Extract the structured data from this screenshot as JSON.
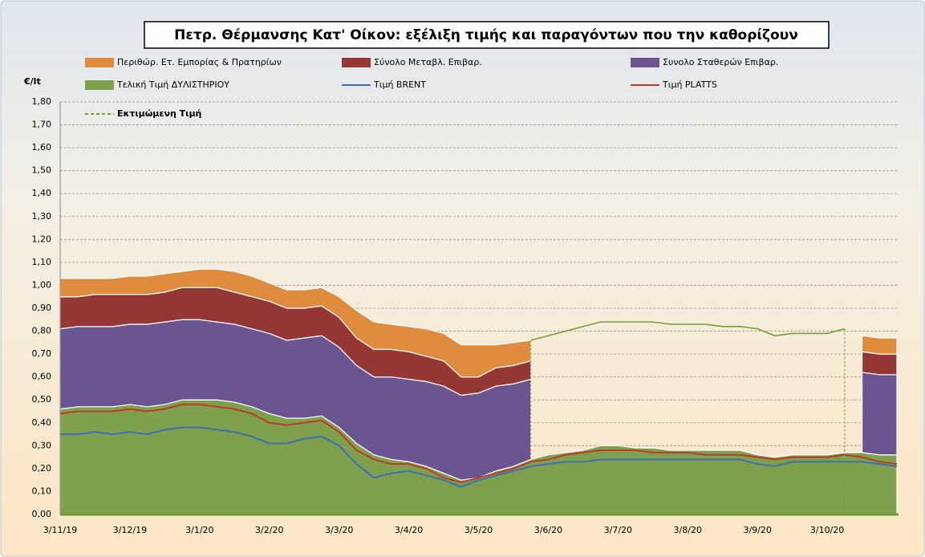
{
  "chart_data": {
    "type": "stacked-area-line",
    "title": "Πετρ. Θέρμανσης Κατ' Οίκον: εξέλιξη τιμής και παραγόντων που την καθορίζουν",
    "y_label": "€/lt",
    "categories": [
      "3/11/19",
      null,
      null,
      null,
      "3/12/19",
      null,
      null,
      null,
      "3/1/20",
      null,
      null,
      null,
      "3/2/20",
      null,
      null,
      null,
      "3/3/20",
      null,
      null,
      null,
      "3/4/20",
      null,
      null,
      null,
      "3/5/20",
      null,
      null,
      null,
      "3/6/20",
      null,
      null,
      null,
      "3/7/20",
      null,
      null,
      null,
      "3/8/20",
      null,
      null,
      null,
      "3/9/20",
      null,
      null,
      null,
      "3/10/20",
      null,
      null,
      null,
      null
    ],
    "ylim": [
      0,
      1.8
    ],
    "yticks": [
      {
        "value": 0,
        "label": "0,00"
      },
      {
        "value": 0.1,
        "label": "0,10"
      },
      {
        "value": 0.2,
        "label": "0,20"
      },
      {
        "value": 0.3,
        "label": "0,30"
      },
      {
        "value": 0.4,
        "label": "0,40"
      },
      {
        "value": 0.5,
        "label": "0,50"
      },
      {
        "value": 0.6,
        "label": "0,60"
      },
      {
        "value": 0.7,
        "label": "0,70"
      },
      {
        "value": 0.8,
        "label": "0,80"
      },
      {
        "value": 0.9,
        "label": "0,90"
      },
      {
        "value": 1.0,
        "label": "1,00"
      },
      {
        "value": 1.1,
        "label": "1,10"
      },
      {
        "value": 1.2,
        "label": "1,20"
      },
      {
        "value": 1.3,
        "label": "1,30"
      },
      {
        "value": 1.4,
        "label": "1,40"
      },
      {
        "value": 1.5,
        "label": "1,50"
      },
      {
        "value": 1.6,
        "label": "1,60"
      },
      {
        "value": 1.7,
        "label": "1,70"
      },
      {
        "value": 1.8,
        "label": "1,80"
      }
    ],
    "grid": true,
    "series": [
      {
        "name": "Τελική Τιμή ΔΥΛΙΣΤΗΡΙΟΥ",
        "kind": "area",
        "color": "#7ea04d",
        "values": [
          0.46,
          0.47,
          0.47,
          0.47,
          0.48,
          0.47,
          0.48,
          0.5,
          0.5,
          0.5,
          0.49,
          0.47,
          0.44,
          0.42,
          0.42,
          0.43,
          0.38,
          0.31,
          0.26,
          0.24,
          0.23,
          0.21,
          0.18,
          0.15,
          0.16,
          0.19,
          0.21,
          0.24,
          0.26,
          0.27,
          0.28,
          0.3,
          0.3,
          0.29,
          0.29,
          0.28,
          0.28,
          0.28,
          0.28,
          0.28,
          0.26,
          0.25,
          0.26,
          0.26,
          0.26,
          0.27,
          0.27,
          0.26,
          0.26
        ]
      },
      {
        "name": "Συνολο Σταθερών Επιβαρ.",
        "kind": "area",
        "color": "#6b548f",
        "values": [
          0.35,
          0.35,
          0.35,
          0.35,
          0.35,
          0.36,
          0.36,
          0.35,
          0.35,
          0.34,
          0.34,
          0.34,
          0.35,
          0.34,
          0.35,
          0.35,
          0.35,
          0.34,
          0.34,
          0.36,
          0.36,
          0.37,
          0.38,
          0.37,
          0.37,
          0.37,
          0.36,
          0.35,
          null,
          null,
          null,
          null,
          null,
          null,
          null,
          null,
          null,
          null,
          null,
          null,
          null,
          null,
          null,
          null,
          null,
          null,
          0.35,
          0.35,
          0.35
        ]
      },
      {
        "name": "Σύνολο Μεταβλ. Επιβαρ.",
        "kind": "area",
        "color": "#953735",
        "values": [
          0.14,
          0.13,
          0.14,
          0.14,
          0.13,
          0.13,
          0.13,
          0.14,
          0.14,
          0.15,
          0.14,
          0.14,
          0.14,
          0.14,
          0.13,
          0.13,
          0.13,
          0.12,
          0.12,
          0.12,
          0.12,
          0.11,
          0.11,
          0.08,
          0.07,
          0.08,
          0.08,
          0.08,
          null,
          null,
          null,
          null,
          null,
          null,
          null,
          null,
          null,
          null,
          null,
          null,
          null,
          null,
          null,
          null,
          null,
          null,
          0.09,
          0.09,
          0.09
        ]
      },
      {
        "name": "Περιθώρ. Ετ. Εμπορίας & Πρατηρίων",
        "kind": "area",
        "color": "#e08c3e",
        "values": [
          0.08,
          0.08,
          0.07,
          0.07,
          0.08,
          0.08,
          0.08,
          0.07,
          0.08,
          0.08,
          0.09,
          0.09,
          0.08,
          0.08,
          0.08,
          0.08,
          0.09,
          0.12,
          0.12,
          0.11,
          0.11,
          0.12,
          0.12,
          0.14,
          0.14,
          0.1,
          0.1,
          0.09,
          null,
          null,
          null,
          null,
          null,
          null,
          null,
          null,
          null,
          null,
          null,
          null,
          null,
          null,
          null,
          null,
          null,
          null,
          0.07,
          0.07,
          0.07
        ]
      },
      {
        "name": "Τιμή BRENT",
        "kind": "line",
        "color": "#3b6fb5",
        "values": [
          0.35,
          0.35,
          0.36,
          0.35,
          0.36,
          0.35,
          0.37,
          0.38,
          0.38,
          0.37,
          0.36,
          0.34,
          0.31,
          0.31,
          0.33,
          0.34,
          0.3,
          0.22,
          0.16,
          0.18,
          0.19,
          0.17,
          0.15,
          0.12,
          0.15,
          0.17,
          0.19,
          0.21,
          0.22,
          0.23,
          0.23,
          0.24,
          0.24,
          0.24,
          0.24,
          0.24,
          0.24,
          0.24,
          0.24,
          0.24,
          0.22,
          0.21,
          0.23,
          0.23,
          0.23,
          0.23,
          0.23,
          0.22,
          0.21
        ]
      },
      {
        "name": "Τιμή PLATTS",
        "kind": "line",
        "color": "#c0392b",
        "values": [
          0.44,
          0.45,
          0.45,
          0.45,
          0.46,
          0.45,
          0.46,
          0.48,
          0.48,
          0.47,
          0.46,
          0.44,
          0.4,
          0.39,
          0.4,
          0.41,
          0.36,
          0.28,
          0.24,
          0.22,
          0.22,
          0.2,
          0.16,
          0.14,
          0.16,
          0.18,
          0.2,
          0.23,
          0.24,
          0.26,
          0.27,
          0.28,
          0.28,
          0.28,
          0.27,
          0.27,
          0.27,
          0.26,
          0.26,
          0.26,
          0.25,
          0.24,
          0.25,
          0.25,
          0.25,
          0.26,
          0.25,
          0.23,
          0.22
        ]
      },
      {
        "name": "Εκτιμώμενη Τιμή",
        "kind": "line",
        "dashed": true,
        "color": "#77a033",
        "values": [
          null,
          null,
          null,
          null,
          null,
          null,
          null,
          null,
          null,
          null,
          null,
          null,
          null,
          null,
          null,
          null,
          null,
          null,
          null,
          null,
          null,
          null,
          null,
          null,
          null,
          null,
          null,
          0.76,
          0.78,
          0.8,
          0.82,
          0.84,
          0.84,
          0.84,
          0.84,
          0.83,
          0.83,
          0.83,
          0.82,
          0.82,
          0.81,
          0.78,
          0.79,
          0.79,
          0.79,
          0.81,
          null,
          null,
          null
        ]
      }
    ]
  }
}
